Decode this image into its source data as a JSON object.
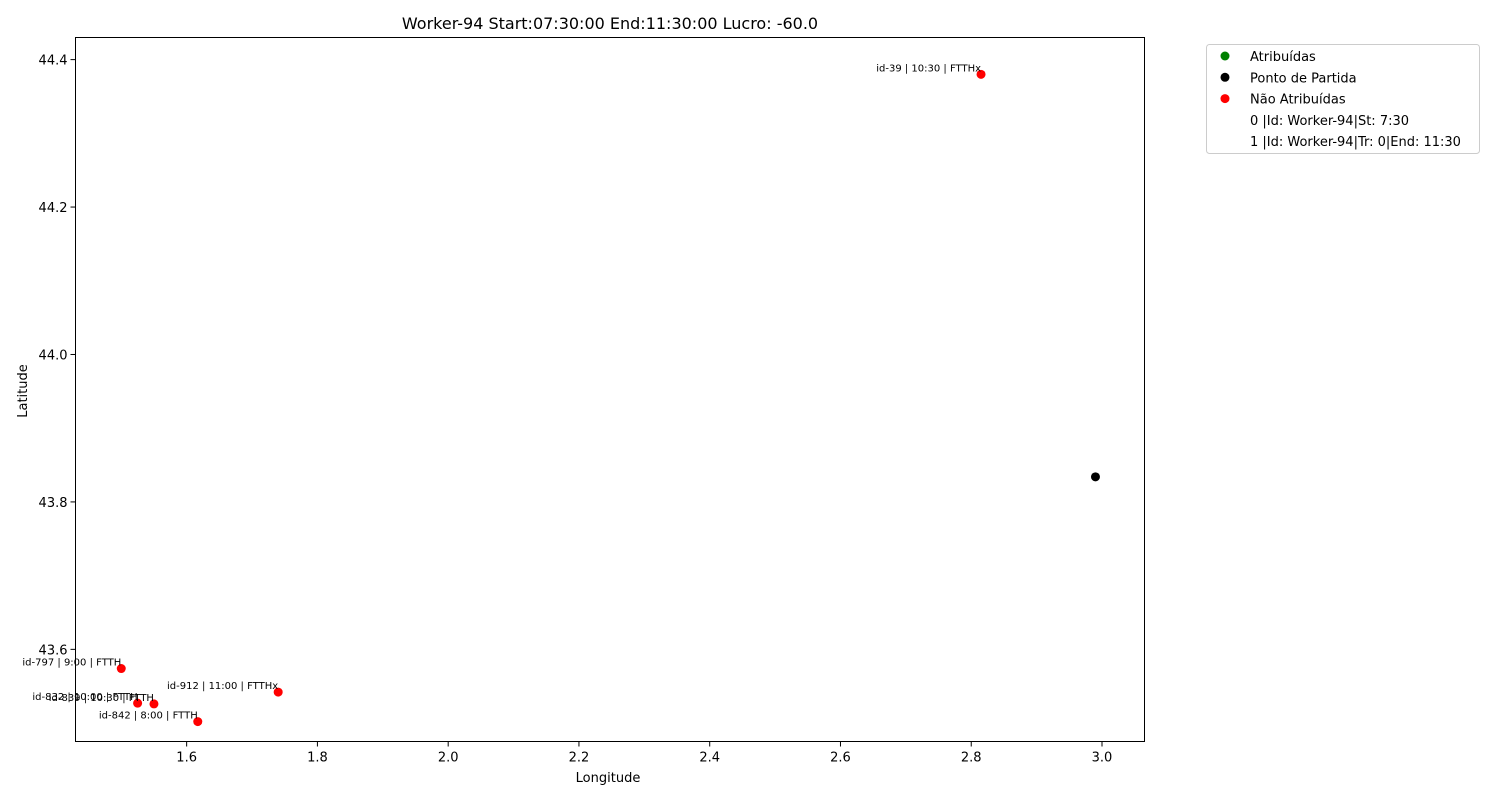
{
  "chart_data": {
    "type": "scatter",
    "title": "Worker-94 Start:07:30:00 End:11:30:00 Lucro: -60.0",
    "xlabel": "Longitude",
    "ylabel": "Latitude",
    "xlim": [
      1.43,
      3.065
    ],
    "ylim": [
      43.475,
      44.43
    ],
    "xticks": [
      "1.6",
      "1.8",
      "2.0",
      "2.2",
      "2.4",
      "2.6",
      "2.8",
      "3.0"
    ],
    "yticks": [
      "43.6",
      "43.8",
      "44.0",
      "44.2",
      "44.4"
    ],
    "grid": false,
    "legend_position": "outside top-right",
    "legend": [
      {
        "label": "Atribuídas",
        "color": "#008000",
        "marker": true
      },
      {
        "label": "Ponto de Partida",
        "color": "#000000",
        "marker": true
      },
      {
        "label": "Não Atribuídas",
        "color": "#ff0000",
        "marker": true
      },
      {
        "label": "0 |Id: Worker-94|St: 7:30",
        "color": "",
        "marker": false
      },
      {
        "label": "1 |Id: Worker-94|Tr: 0|End: 11:30",
        "color": "",
        "marker": false
      }
    ],
    "series": [
      {
        "name": "Ponto de Partida",
        "color": "#000000",
        "points": [
          {
            "x": 2.99,
            "y": 43.834,
            "label": ""
          }
        ]
      },
      {
        "name": "Não Atribuídas",
        "color": "#ff0000",
        "points": [
          {
            "x": 2.815,
            "y": 44.38,
            "label": "id-39 | 10:30 | FTTHx"
          },
          {
            "x": 1.5,
            "y": 43.574,
            "label": "id-797 | 9:00 | FTTH"
          },
          {
            "x": 1.74,
            "y": 43.542,
            "label": "id-912 | 11:00 | FTTHx"
          },
          {
            "x": 1.525,
            "y": 43.527,
            "label": "id-832 | 10:00 | FTTH"
          },
          {
            "x": 1.55,
            "y": 43.526,
            "label": "id-839 | 10:30 | FTTH"
          },
          {
            "x": 1.617,
            "y": 43.502,
            "label": "id-842 | 8:00 | FTTH"
          }
        ]
      }
    ]
  }
}
